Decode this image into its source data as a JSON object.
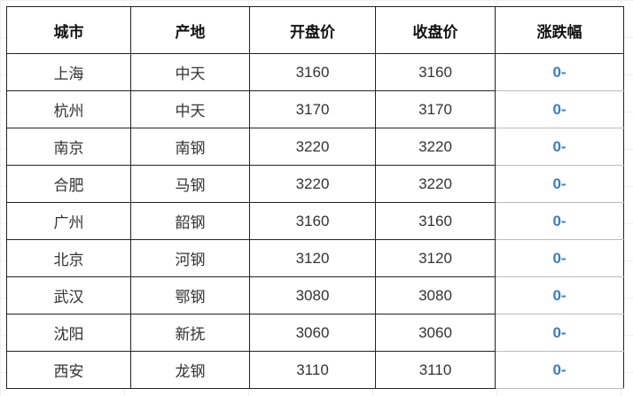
{
  "headers": [
    "城市",
    "产地",
    "开盘价",
    "收盘价",
    "涨跌幅"
  ],
  "rows": [
    {
      "city": "上海",
      "origin": "中天",
      "open": "3160",
      "close": "3160",
      "change": "0-"
    },
    {
      "city": "杭州",
      "origin": "中天",
      "open": "3170",
      "close": "3170",
      "change": "0-"
    },
    {
      "city": "南京",
      "origin": "南钢",
      "open": "3220",
      "close": "3220",
      "change": "0-"
    },
    {
      "city": "合肥",
      "origin": "马钢",
      "open": "3220",
      "close": "3220",
      "change": "0-"
    },
    {
      "city": "广州",
      "origin": "韶钢",
      "open": "3160",
      "close": "3160",
      "change": "0-"
    },
    {
      "city": "北京",
      "origin": "河钢",
      "open": "3120",
      "close": "3120",
      "change": "0-"
    },
    {
      "city": "武汉",
      "origin": "鄂钢",
      "open": "3080",
      "close": "3080",
      "change": "0-"
    },
    {
      "city": "沈阳",
      "origin": "新抚",
      "open": "3060",
      "close": "3060",
      "change": "0-"
    },
    {
      "city": "西安",
      "origin": "龙钢",
      "open": "3110",
      "close": "3110",
      "change": "0-"
    }
  ],
  "colors": {
    "change_text": "#3a7cc4",
    "border": "#222222"
  }
}
